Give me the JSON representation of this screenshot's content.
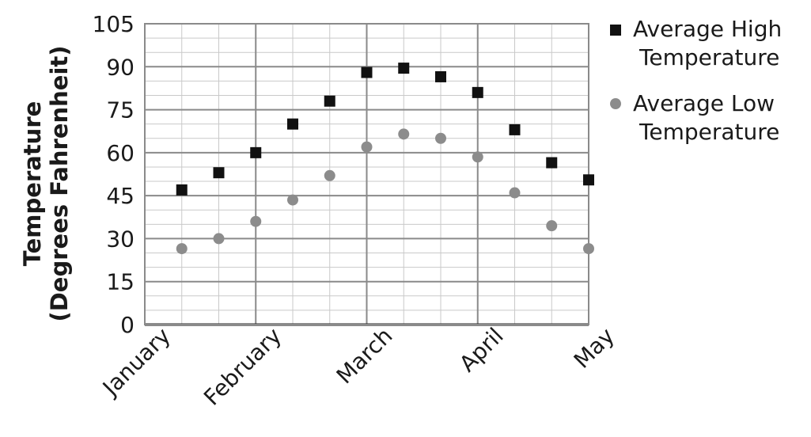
{
  "chart_data": {
    "type": "scatter",
    "ylabel_lines": [
      "Temperature",
      "(Degrees Fahrenheit)"
    ],
    "xlabel": "",
    "ylim": [
      0,
      105
    ],
    "y_ticks": [
      0,
      15,
      30,
      45,
      60,
      75,
      90,
      105
    ],
    "x_ticks": [
      "January",
      "February",
      "March",
      "April",
      "May"
    ],
    "grid": true,
    "legend_position": "top-right",
    "series": [
      {
        "name": "Average High Temperature",
        "name_lines": [
          "Average High",
          "Temperature"
        ],
        "marker": "square",
        "color": "#111111",
        "x": [
          "January",
          "January 15",
          "February",
          "February 15",
          "February 28",
          "March",
          "March 15",
          "March 31",
          "April",
          "April 15",
          "April 30",
          "May"
        ],
        "values": [
          47,
          53,
          60,
          70,
          78,
          88,
          89.5,
          86.5,
          81,
          68,
          56.5,
          50.5
        ]
      },
      {
        "name": "Average Low Temperature",
        "name_lines": [
          "Average Low",
          "Temperature"
        ],
        "marker": "circle",
        "color": "#8c8c8c",
        "x": [
          "January",
          "January 15",
          "February",
          "February 15",
          "February 28",
          "March",
          "March 15",
          "March 31",
          "April",
          "April 15",
          "April 30",
          "May"
        ],
        "values": [
          26.5,
          30,
          36,
          43.5,
          52,
          62,
          66.5,
          65,
          58.5,
          46,
          34.5,
          26.5
        ]
      }
    ]
  }
}
